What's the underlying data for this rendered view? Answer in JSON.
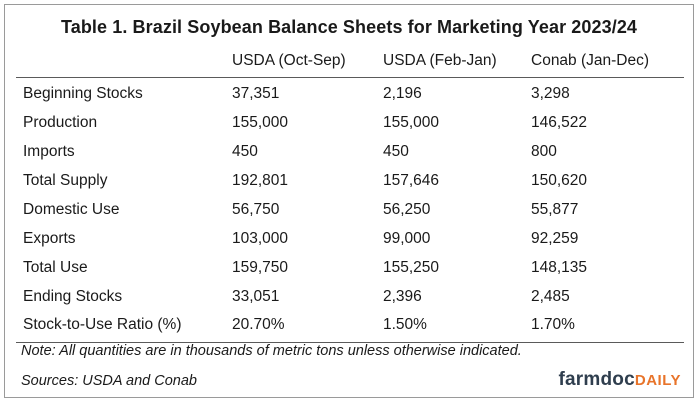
{
  "title": "Table 1. Brazil Soybean Balance Sheets for Marketing Year 2023/24",
  "columns": [
    "USDA (Oct-Sep)",
    "USDA (Feb-Jan)",
    "Conab (Jan-Dec)"
  ],
  "rows": [
    {
      "label": "Beginning Stocks",
      "values": [
        "37,351",
        "2,196",
        "3,298"
      ]
    },
    {
      "label": "Production",
      "values": [
        "155,000",
        "155,000",
        "146,522"
      ]
    },
    {
      "label": "Imports",
      "values": [
        "450",
        "450",
        "800"
      ]
    },
    {
      "label": "Total Supply",
      "values": [
        "192,801",
        "157,646",
        "150,620"
      ]
    },
    {
      "label": "Domestic Use",
      "values": [
        "56,750",
        "56,250",
        "55,877"
      ]
    },
    {
      "label": "Exports",
      "values": [
        "103,000",
        "99,000",
        "92,259"
      ]
    },
    {
      "label": "Total Use",
      "values": [
        "159,750",
        "155,250",
        "148,135"
      ]
    },
    {
      "label": "Ending Stocks",
      "values": [
        "33,051",
        "2,396",
        "2,485"
      ]
    },
    {
      "label": "Stock-to-Use Ratio (%)",
      "values": [
        "20.70%",
        "1.50%",
        "1.70%"
      ]
    }
  ],
  "note": "Note: All quantities are in thousands of metric tons unless otherwise indicated.",
  "sources": "Sources: USDA and Conab",
  "logo": {
    "part1": "farmdoc",
    "part2": "DAILY"
  },
  "colors": {
    "rule": "#5a5a5a",
    "logo_dark": "#2f3e4e",
    "logo_accent": "#e8742a"
  }
}
